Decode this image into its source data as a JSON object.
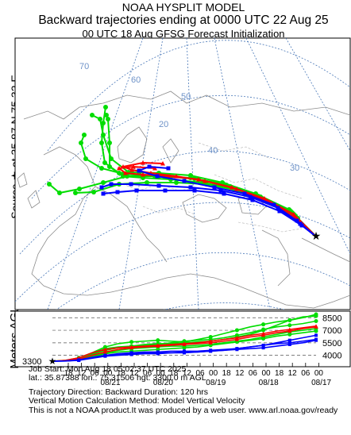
{
  "header": {
    "line1": "NOAA HYSPLIT MODEL",
    "line2": "Backward trajectories ending at 0000 UTC 22 Aug 25",
    "line3": "00 UTC 18 Aug    GFSG  Forecast Initialization"
  },
  "source_label": "Source ★ at   35.87 N   75.32 E",
  "profile_ylabel": "Meters AGL",
  "map": {
    "lat_labels": [
      "70",
      "60",
      "50",
      "40",
      "30",
      "20"
    ],
    "source_marker": "source-star"
  },
  "chart_data": {
    "type": "line",
    "title": "",
    "xlabel": "",
    "ylabel": "Meters AGL",
    "x_tick_labels": [
      "18",
      "12",
      "06",
      "00",
      "18",
      "12",
      "06",
      "00",
      "18",
      "12",
      "06",
      "00",
      "18",
      "12",
      "06",
      "00",
      "18",
      "12",
      "06",
      "00"
    ],
    "date_labels": [
      "08/21",
      "08/20",
      "08/19",
      "08/18",
      "08/17"
    ],
    "y_tick_labels": [
      "8500",
      "7000",
      "5500",
      "4000"
    ],
    "start_label": "3300",
    "x_range_hours": [
      120,
      0
    ],
    "ylim": [
      3300,
      9000
    ],
    "colors": {
      "red": "#ff0000",
      "blue": "#0000ff",
      "green": "#00dd00"
    },
    "series": [
      {
        "color": "green",
        "values": [
          3300,
          3350,
          3600,
          4200,
          4800,
          5000,
          5100,
          5300,
          5400,
          5400,
          5500,
          5600,
          5700,
          5900,
          6200,
          6500,
          7000,
          7600,
          8200,
          8600,
          8700
        ]
      },
      {
        "color": "green",
        "values": [
          3300,
          3400,
          3700,
          4300,
          5000,
          5400,
          5600,
          5700,
          5800,
          5700,
          5600,
          5900,
          6200,
          6600,
          7000,
          7400,
          7700,
          8000,
          8200,
          8500,
          8900
        ]
      },
      {
        "color": "green",
        "values": [
          3300,
          3380,
          3650,
          4100,
          4600,
          4900,
          5000,
          5200,
          5300,
          5500,
          5700,
          5800,
          5900,
          6100,
          6400,
          6700,
          7100,
          7400,
          7600,
          7800,
          8100
        ]
      },
      {
        "color": "green",
        "values": [
          3300,
          3350,
          3500,
          3900,
          4300,
          4600,
          4800,
          4900,
          5000,
          5100,
          5100,
          5200,
          5300,
          5500,
          5700,
          5900,
          6200,
          6500,
          6800,
          7000,
          7200
        ]
      },
      {
        "color": "green",
        "values": [
          3300,
          3330,
          3450,
          3800,
          4200,
          4400,
          4500,
          4600,
          4700,
          4800,
          4900,
          5000,
          5200,
          5400,
          5600,
          5800,
          6000,
          6300,
          6500,
          6700,
          6900
        ]
      },
      {
        "color": "red",
        "values": [
          3300,
          3400,
          3700,
          4300,
          4700,
          4900,
          5000,
          5100,
          5200,
          5300,
          5400,
          5500,
          5700,
          5900,
          6100,
          6400,
          6600,
          6900,
          7100,
          7300,
          7500
        ]
      },
      {
        "color": "red",
        "values": [
          3300,
          3350,
          3550,
          4000,
          4400,
          4700,
          4900,
          5000,
          5100,
          5200,
          5300,
          5400,
          5500,
          5700,
          5900,
          6200,
          6400,
          6700,
          6900,
          7200,
          7400
        ]
      },
      {
        "color": "blue",
        "values": [
          3300,
          3330,
          3450,
          3750,
          4000,
          4200,
          4300,
          4400,
          4400,
          4500,
          4500,
          4500,
          4600,
          4700,
          4800,
          5000,
          5200,
          5400,
          5500,
          5700,
          5900
        ]
      },
      {
        "color": "blue",
        "values": [
          3300,
          3320,
          3400,
          3650,
          3900,
          4000,
          4100,
          4200,
          4200,
          4300,
          4300,
          4400,
          4500,
          4600,
          4800,
          5000,
          5200,
          5500,
          5800,
          6100,
          6400
        ]
      },
      {
        "color": "blue",
        "values": [
          3300,
          3330,
          3420,
          3700,
          3950,
          4100,
          4200,
          4300,
          4300,
          4300,
          4400,
          4400,
          4500,
          4600,
          4700,
          4800,
          4900,
          5100,
          5300,
          5500,
          5800
        ]
      }
    ]
  },
  "footer": {
    "line1": "Job Start: Mon Aug 18 05:02:37 UTC 2025",
    "line2": "lat.: 35.87388   lon.: 75.31506   hgt: 3300.0 m AGL",
    "line3": "Trajectory Direction: Backward       Duration: 120 hrs",
    "line4": "Vertical Motion Calculation Method: Model Vertical Velocity",
    "line5": "This is not a NOAA product.It was produced by a web user. www.arl.noaa.gov/ready"
  }
}
